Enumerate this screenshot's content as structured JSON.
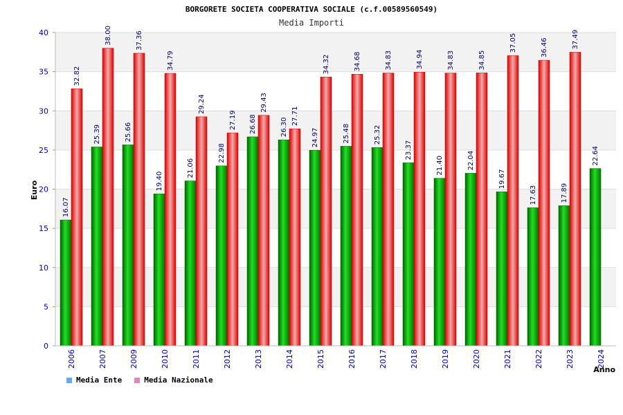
{
  "chart_data": {
    "type": "bar",
    "title": "BORGORETE SOCIETA COOPERATIVA SOCIALE (c.f.00589560549)",
    "subtitle": "Media Importi",
    "xlabel": "Anno",
    "ylabel": "Euro",
    "ylim": [
      0,
      40
    ],
    "yticks": [
      "0",
      "5",
      "10",
      "15",
      "20",
      "25",
      "30",
      "35",
      "40"
    ],
    "categories": [
      "2006",
      "2007",
      "2009",
      "2010",
      "2011",
      "2012",
      "2013",
      "2014",
      "2015",
      "2016",
      "2017",
      "2018",
      "2019",
      "2020",
      "2021",
      "2022",
      "2023",
      "2024"
    ],
    "series": [
      {
        "name": "Media Ente",
        "color": "#00aa00",
        "values": [
          16.07,
          25.39,
          25.66,
          19.4,
          21.06,
          22.98,
          26.68,
          26.3,
          24.97,
          25.48,
          25.32,
          23.37,
          21.4,
          22.04,
          19.67,
          17.63,
          17.89,
          22.64
        ],
        "labels": [
          "16.07",
          "25.39",
          "25.66",
          "19.40",
          "21.06",
          "22.98",
          "26.68",
          "26.30",
          "24.97",
          "25.48",
          "25.32",
          "23.37",
          "21.40",
          "22.04",
          "19.67",
          "17.63",
          "17.89",
          "22.64"
        ]
      },
      {
        "name": "Media Nazionale",
        "color": "#ee1111",
        "values": [
          32.82,
          38.0,
          37.36,
          34.79,
          29.24,
          27.19,
          29.43,
          27.71,
          34.32,
          34.68,
          34.83,
          34.94,
          34.83,
          34.85,
          37.05,
          36.46,
          37.49,
          null
        ],
        "labels": [
          "32.82",
          "38.00",
          "37.36",
          "34.79",
          "29.24",
          "27.19",
          "29.43",
          "27.71",
          "34.32",
          "34.68",
          "34.83",
          "34.94",
          "34.83",
          "34.85",
          "37.05",
          "36.46",
          "37.49",
          null
        ]
      }
    ],
    "legend": [
      {
        "name": "Media Ente",
        "color": "#66aaee"
      },
      {
        "name": "Media Nazionale",
        "color": "#dd88bb"
      }
    ]
  }
}
